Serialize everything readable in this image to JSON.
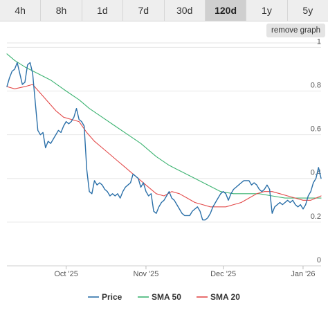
{
  "tabs": [
    {
      "label": "4h",
      "active": false
    },
    {
      "label": "8h",
      "active": false
    },
    {
      "label": "1d",
      "active": false
    },
    {
      "label": "7d",
      "active": false
    },
    {
      "label": "30d",
      "active": false
    },
    {
      "label": "120d",
      "active": true
    },
    {
      "label": "1y",
      "active": false
    },
    {
      "label": "5y",
      "active": false
    }
  ],
  "remove_button_label": "remove graph",
  "chart_data": {
    "type": "line",
    "grid": true,
    "legend_position": "bottom",
    "y_ticks": [
      {
        "value": 0,
        "label": "0"
      },
      {
        "value": 0.2,
        "label": "0.2"
      },
      {
        "value": 0.4,
        "label": "0.4"
      },
      {
        "value": 0.6,
        "label": "0.6"
      },
      {
        "value": 0.8,
        "label": "0.8"
      },
      {
        "value": 1,
        "label": "1"
      }
    ],
    "ylim": [
      0,
      1.02
    ],
    "x_domain": [
      "2025-09-08",
      "2026-01-08"
    ],
    "x_ticks": [
      {
        "date": "2025-10-01",
        "label": "Oct '25"
      },
      {
        "date": "2025-11-01",
        "label": "Nov '25"
      },
      {
        "date": "2025-12-01",
        "label": "Dec '25"
      },
      {
        "date": "2026-01-01",
        "label": "Jan '26"
      }
    ],
    "series": [
      {
        "name": "Price",
        "color": "#2a6fa8",
        "points": [
          [
            "2025-09-08",
            0.82
          ],
          [
            "2025-09-09",
            0.86
          ],
          [
            "2025-09-10",
            0.89
          ],
          [
            "2025-09-11",
            0.9
          ],
          [
            "2025-09-12",
            0.93
          ],
          [
            "2025-09-13",
            0.88
          ],
          [
            "2025-09-14",
            0.83
          ],
          [
            "2025-09-15",
            0.84
          ],
          [
            "2025-09-16",
            0.92
          ],
          [
            "2025-09-17",
            0.93
          ],
          [
            "2025-09-18",
            0.88
          ],
          [
            "2025-09-19",
            0.75
          ],
          [
            "2025-09-20",
            0.62
          ],
          [
            "2025-09-21",
            0.6
          ],
          [
            "2025-09-22",
            0.61
          ],
          [
            "2025-09-23",
            0.54
          ],
          [
            "2025-09-24",
            0.57
          ],
          [
            "2025-09-25",
            0.56
          ],
          [
            "2025-09-26",
            0.58
          ],
          [
            "2025-09-27",
            0.6
          ],
          [
            "2025-09-28",
            0.62
          ],
          [
            "2025-09-29",
            0.61
          ],
          [
            "2025-09-30",
            0.64
          ],
          [
            "2025-10-01",
            0.66
          ],
          [
            "2025-10-02",
            0.65
          ],
          [
            "2025-10-03",
            0.66
          ],
          [
            "2025-10-04",
            0.68
          ],
          [
            "2025-10-05",
            0.72
          ],
          [
            "2025-10-06",
            0.67
          ],
          [
            "2025-10-07",
            0.66
          ],
          [
            "2025-10-08",
            0.64
          ],
          [
            "2025-10-09",
            0.44
          ],
          [
            "2025-10-10",
            0.34
          ],
          [
            "2025-10-11",
            0.33
          ],
          [
            "2025-10-12",
            0.39
          ],
          [
            "2025-10-13",
            0.37
          ],
          [
            "2025-10-14",
            0.38
          ],
          [
            "2025-10-15",
            0.37
          ],
          [
            "2025-10-16",
            0.35
          ],
          [
            "2025-10-17",
            0.34
          ],
          [
            "2025-10-18",
            0.32
          ],
          [
            "2025-10-19",
            0.33
          ],
          [
            "2025-10-20",
            0.32
          ],
          [
            "2025-10-21",
            0.33
          ],
          [
            "2025-10-22",
            0.31
          ],
          [
            "2025-10-23",
            0.34
          ],
          [
            "2025-10-24",
            0.36
          ],
          [
            "2025-10-25",
            0.37
          ],
          [
            "2025-10-26",
            0.38
          ],
          [
            "2025-10-27",
            0.42
          ],
          [
            "2025-10-28",
            0.41
          ],
          [
            "2025-10-29",
            0.4
          ],
          [
            "2025-10-30",
            0.36
          ],
          [
            "2025-10-31",
            0.38
          ],
          [
            "2025-11-01",
            0.34
          ],
          [
            "2025-11-02",
            0.32
          ],
          [
            "2025-11-03",
            0.33
          ],
          [
            "2025-11-04",
            0.25
          ],
          [
            "2025-11-05",
            0.24
          ],
          [
            "2025-11-06",
            0.27
          ],
          [
            "2025-11-07",
            0.29
          ],
          [
            "2025-11-08",
            0.3
          ],
          [
            "2025-11-09",
            0.32
          ],
          [
            "2025-11-10",
            0.34
          ],
          [
            "2025-11-11",
            0.31
          ],
          [
            "2025-11-12",
            0.3
          ],
          [
            "2025-11-13",
            0.28
          ],
          [
            "2025-11-14",
            0.26
          ],
          [
            "2025-11-15",
            0.24
          ],
          [
            "2025-11-16",
            0.23
          ],
          [
            "2025-11-17",
            0.23
          ],
          [
            "2025-11-18",
            0.23
          ],
          [
            "2025-11-19",
            0.25
          ],
          [
            "2025-11-20",
            0.26
          ],
          [
            "2025-11-21",
            0.27
          ],
          [
            "2025-11-22",
            0.25
          ],
          [
            "2025-11-23",
            0.21
          ],
          [
            "2025-11-24",
            0.21
          ],
          [
            "2025-11-25",
            0.22
          ],
          [
            "2025-11-26",
            0.24
          ],
          [
            "2025-11-27",
            0.27
          ],
          [
            "2025-11-28",
            0.29
          ],
          [
            "2025-11-29",
            0.31
          ],
          [
            "2025-11-30",
            0.33
          ],
          [
            "2025-12-01",
            0.34
          ],
          [
            "2025-12-02",
            0.33
          ],
          [
            "2025-12-03",
            0.3
          ],
          [
            "2025-12-04",
            0.33
          ],
          [
            "2025-12-05",
            0.35
          ],
          [
            "2025-12-06",
            0.36
          ],
          [
            "2025-12-07",
            0.37
          ],
          [
            "2025-12-08",
            0.38
          ],
          [
            "2025-12-09",
            0.39
          ],
          [
            "2025-12-10",
            0.39
          ],
          [
            "2025-12-11",
            0.39
          ],
          [
            "2025-12-12",
            0.37
          ],
          [
            "2025-12-13",
            0.38
          ],
          [
            "2025-12-14",
            0.37
          ],
          [
            "2025-12-15",
            0.35
          ],
          [
            "2025-12-16",
            0.34
          ],
          [
            "2025-12-17",
            0.35
          ],
          [
            "2025-12-18",
            0.37
          ],
          [
            "2025-12-19",
            0.35
          ],
          [
            "2025-12-20",
            0.24
          ],
          [
            "2025-12-21",
            0.27
          ],
          [
            "2025-12-22",
            0.28
          ],
          [
            "2025-12-23",
            0.29
          ],
          [
            "2025-12-24",
            0.28
          ],
          [
            "2025-12-25",
            0.29
          ],
          [
            "2025-12-26",
            0.3
          ],
          [
            "2025-12-27",
            0.29
          ],
          [
            "2025-12-28",
            0.3
          ],
          [
            "2025-12-29",
            0.28
          ],
          [
            "2025-12-30",
            0.27
          ],
          [
            "2025-12-31",
            0.28
          ],
          [
            "2026-01-01",
            0.26
          ],
          [
            "2026-01-02",
            0.28
          ],
          [
            "2026-01-03",
            0.32
          ],
          [
            "2026-01-04",
            0.34
          ],
          [
            "2026-01-05",
            0.38
          ],
          [
            "2026-01-06",
            0.4
          ],
          [
            "2026-01-07",
            0.45
          ],
          [
            "2026-01-08",
            0.4
          ]
        ]
      },
      {
        "name": "SMA 50",
        "color": "#3cb371",
        "points": [
          [
            "2025-09-08",
            0.97
          ],
          [
            "2025-09-11",
            0.94
          ],
          [
            "2025-09-15",
            0.91
          ],
          [
            "2025-09-20",
            0.88
          ],
          [
            "2025-09-25",
            0.85
          ],
          [
            "2025-10-01",
            0.8
          ],
          [
            "2025-10-06",
            0.76
          ],
          [
            "2025-10-10",
            0.72
          ],
          [
            "2025-10-15",
            0.68
          ],
          [
            "2025-10-20",
            0.64
          ],
          [
            "2025-10-25",
            0.6
          ],
          [
            "2025-10-30",
            0.56
          ],
          [
            "2025-11-05",
            0.5
          ],
          [
            "2025-11-10",
            0.46
          ],
          [
            "2025-11-15",
            0.43
          ],
          [
            "2025-11-20",
            0.4
          ],
          [
            "2025-11-25",
            0.37
          ],
          [
            "2025-11-30",
            0.34
          ],
          [
            "2025-12-05",
            0.33
          ],
          [
            "2025-12-10",
            0.33
          ],
          [
            "2025-12-15",
            0.33
          ],
          [
            "2025-12-20",
            0.32
          ],
          [
            "2025-12-25",
            0.31
          ],
          [
            "2025-12-30",
            0.31
          ],
          [
            "2026-01-04",
            0.31
          ],
          [
            "2026-01-08",
            0.31
          ]
        ]
      },
      {
        "name": "SMA 20",
        "color": "#e34a4a",
        "points": [
          [
            "2025-09-08",
            0.82
          ],
          [
            "2025-09-11",
            0.81
          ],
          [
            "2025-09-15",
            0.82
          ],
          [
            "2025-09-18",
            0.83
          ],
          [
            "2025-09-21",
            0.79
          ],
          [
            "2025-09-24",
            0.75
          ],
          [
            "2025-09-27",
            0.71
          ],
          [
            "2025-09-30",
            0.68
          ],
          [
            "2025-10-03",
            0.67
          ],
          [
            "2025-10-06",
            0.66
          ],
          [
            "2025-10-09",
            0.61
          ],
          [
            "2025-10-12",
            0.57
          ],
          [
            "2025-10-15",
            0.54
          ],
          [
            "2025-10-18",
            0.51
          ],
          [
            "2025-10-21",
            0.48
          ],
          [
            "2025-10-24",
            0.45
          ],
          [
            "2025-10-27",
            0.42
          ],
          [
            "2025-10-30",
            0.39
          ],
          [
            "2025-11-02",
            0.36
          ],
          [
            "2025-11-05",
            0.33
          ],
          [
            "2025-11-08",
            0.32
          ],
          [
            "2025-11-11",
            0.34
          ],
          [
            "2025-11-14",
            0.33
          ],
          [
            "2025-11-17",
            0.31
          ],
          [
            "2025-11-20",
            0.29
          ],
          [
            "2025-11-23",
            0.28
          ],
          [
            "2025-11-26",
            0.27
          ],
          [
            "2025-11-29",
            0.27
          ],
          [
            "2025-12-02",
            0.27
          ],
          [
            "2025-12-05",
            0.28
          ],
          [
            "2025-12-08",
            0.29
          ],
          [
            "2025-12-11",
            0.31
          ],
          [
            "2025-12-14",
            0.33
          ],
          [
            "2025-12-17",
            0.34
          ],
          [
            "2025-12-20",
            0.34
          ],
          [
            "2025-12-23",
            0.33
          ],
          [
            "2025-12-26",
            0.32
          ],
          [
            "2025-12-29",
            0.31
          ],
          [
            "2026-01-01",
            0.3
          ],
          [
            "2026-01-04",
            0.3
          ],
          [
            "2026-01-08",
            0.32
          ]
        ]
      }
    ]
  }
}
